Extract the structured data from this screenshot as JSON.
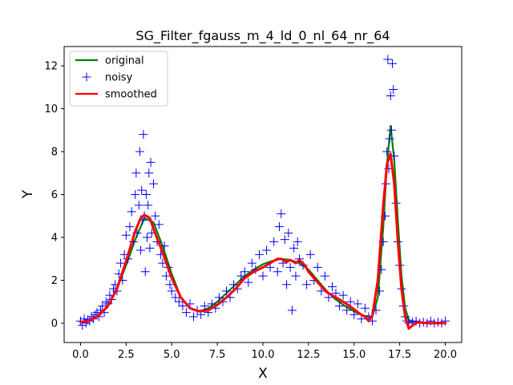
{
  "chart_data": {
    "type": "line",
    "title": "SG_Filter_fgauss_m_4_ld_0_nl_64_nr_64",
    "xlabel": "X",
    "ylabel": "Y",
    "xlim": [
      -0.9,
      20.9
    ],
    "ylim": [
      -0.9,
      12.9
    ],
    "xticks": [
      0.0,
      2.5,
      5.0,
      7.5,
      10.0,
      12.5,
      15.0,
      17.5,
      20.0
    ],
    "xtick_labels": [
      "0.0",
      "2.5",
      "5.0",
      "7.5",
      "10.0",
      "12.5",
      "15.0",
      "17.5",
      "20.0"
    ],
    "yticks": [
      0,
      2,
      4,
      6,
      8,
      10,
      12
    ],
    "ytick_labels": [
      "0",
      "2",
      "4",
      "6",
      "8",
      "10",
      "12"
    ],
    "grid": false,
    "legend_position": "top-left",
    "series": [
      {
        "name": "original",
        "style": "line",
        "color": "#008000",
        "x": [
          0,
          0.5,
          1,
          1.5,
          2,
          2.5,
          3,
          3.5,
          4,
          4.5,
          5,
          5.5,
          6,
          6.5,
          7,
          7.5,
          8,
          8.5,
          9,
          9.5,
          10,
          10.5,
          11,
          11.5,
          12,
          12.5,
          13,
          13.5,
          14,
          14.5,
          15,
          15.5,
          16,
          16.3,
          16.6,
          16.8,
          17,
          17.2,
          17.4,
          17.6,
          17.8,
          18,
          18.5,
          19,
          19.5,
          20
        ],
        "y": [
          0.05,
          0.12,
          0.35,
          0.8,
          1.6,
          2.7,
          3.9,
          4.9,
          4.7,
          3.6,
          2.3,
          1.2,
          0.7,
          0.55,
          0.7,
          1.0,
          1.4,
          1.8,
          2.2,
          2.5,
          2.75,
          2.9,
          3.0,
          2.95,
          2.8,
          2.5,
          2.0,
          1.5,
          1.1,
          0.8,
          0.55,
          0.35,
          0.3,
          1.2,
          4.5,
          7.4,
          9.2,
          7.6,
          4.8,
          2.2,
          0.7,
          0.15,
          0.02,
          0.0,
          0.0,
          0.0
        ]
      },
      {
        "name": "noisy",
        "style": "markers",
        "marker": "+",
        "color": "#0000ff",
        "x": [
          0.0,
          0.1,
          0.2,
          0.3,
          0.4,
          0.5,
          0.6,
          0.7,
          0.8,
          0.9,
          1.0,
          1.1,
          1.2,
          1.3,
          1.4,
          1.5,
          1.6,
          1.7,
          1.8,
          1.9,
          2.0,
          2.1,
          2.2,
          2.3,
          2.4,
          2.5,
          2.6,
          2.7,
          2.8,
          2.9,
          3.0,
          3.05,
          3.1,
          3.2,
          3.25,
          3.3,
          3.35,
          3.4,
          3.45,
          3.5,
          3.55,
          3.6,
          3.65,
          3.7,
          3.75,
          3.8,
          3.85,
          3.9,
          4.0,
          4.1,
          4.2,
          4.3,
          4.4,
          4.5,
          4.6,
          4.7,
          4.8,
          4.9,
          5.0,
          5.2,
          5.4,
          5.6,
          5.8,
          6.0,
          6.2,
          6.4,
          6.6,
          6.8,
          7.0,
          7.2,
          7.4,
          7.6,
          7.8,
          8.0,
          8.2,
          8.4,
          8.6,
          8.8,
          9.0,
          9.2,
          9.4,
          9.6,
          9.8,
          10.0,
          10.2,
          10.4,
          10.6,
          10.8,
          10.9,
          11.0,
          11.1,
          11.2,
          11.3,
          11.4,
          11.5,
          11.6,
          11.7,
          11.8,
          11.9,
          12.0,
          12.2,
          12.4,
          12.6,
          12.8,
          13.0,
          13.2,
          13.4,
          13.6,
          13.8,
          14.0,
          14.2,
          14.4,
          14.6,
          14.8,
          15.0,
          15.2,
          15.4,
          15.6,
          15.8,
          16.0,
          16.2,
          16.4,
          16.5,
          16.6,
          16.7,
          16.75,
          16.8,
          16.85,
          16.9,
          16.95,
          17.0,
          17.05,
          17.1,
          17.15,
          17.2,
          17.3,
          17.4,
          17.5,
          17.6,
          17.7,
          17.8,
          17.9,
          18.0,
          18.2,
          18.4,
          18.6,
          18.8,
          19.0,
          19.2,
          19.4,
          19.6,
          19.8,
          20.0
        ],
        "y": [
          0.1,
          -0.1,
          0.2,
          0.0,
          0.15,
          0.1,
          0.3,
          0.2,
          0.4,
          0.5,
          0.3,
          0.6,
          0.8,
          0.5,
          1.0,
          0.9,
          1.3,
          1.1,
          1.6,
          1.8,
          1.5,
          2.3,
          2.8,
          2.0,
          3.2,
          4.1,
          3.0,
          4.5,
          5.2,
          3.8,
          6.0,
          7.0,
          4.2,
          5.5,
          8.0,
          3.4,
          6.2,
          4.8,
          8.8,
          5.0,
          2.4,
          6.0,
          4.0,
          5.5,
          7.0,
          3.5,
          7.5,
          4.2,
          6.5,
          5.0,
          3.8,
          4.6,
          3.2,
          2.8,
          3.6,
          2.2,
          2.6,
          1.8,
          1.5,
          1.2,
          1.0,
          0.8,
          0.5,
          0.9,
          0.3,
          0.6,
          0.4,
          0.8,
          0.5,
          0.9,
          0.7,
          1.2,
          1.0,
          1.5,
          1.2,
          1.8,
          1.6,
          2.2,
          2.4,
          1.9,
          2.8,
          2.5,
          3.2,
          2.2,
          3.4,
          2.6,
          3.8,
          2.4,
          4.5,
          5.1,
          2.8,
          3.9,
          1.8,
          4.2,
          2.6,
          0.6,
          3.5,
          2.2,
          3.8,
          3.0,
          2.7,
          1.8,
          3.2,
          2.0,
          2.6,
          1.5,
          2.2,
          1.2,
          1.7,
          1.4,
          0.8,
          1.3,
          0.6,
          1.0,
          0.4,
          0.9,
          0.2,
          0.7,
          0.3,
          0.1,
          0.6,
          1.5,
          2.5,
          3.8,
          5.0,
          6.5,
          8.0,
          12.3,
          7.2,
          8.6,
          10.6,
          9.0,
          12.1,
          10.9,
          7.8,
          5.6,
          3.8,
          2.7,
          1.6,
          0.8,
          0.3,
          0.1,
          0.0,
          0.05,
          0.1,
          0.0,
          0.05,
          0.0,
          0.1,
          0.0,
          0.05,
          0.0,
          0.1
        ]
      },
      {
        "name": "smoothed",
        "style": "line",
        "color": "#ff0000",
        "x": [
          0.0,
          0.5,
          1.0,
          1.5,
          2.0,
          2.5,
          3.0,
          3.3,
          3.5,
          3.8,
          4.0,
          4.5,
          5.0,
          5.5,
          6.0,
          6.5,
          7.0,
          7.5,
          8.0,
          8.5,
          9.0,
          9.5,
          10.0,
          10.5,
          10.8,
          11.0,
          11.3,
          11.5,
          11.8,
          12.0,
          12.3,
          12.5,
          13.0,
          13.5,
          14.0,
          14.5,
          15.0,
          15.3,
          15.6,
          15.8,
          16.0,
          16.3,
          16.6,
          16.8,
          17.0,
          17.2,
          17.4,
          17.6,
          17.8,
          18.0,
          18.2,
          18.5,
          19.0,
          19.5,
          20.0
        ],
        "y": [
          0.05,
          0.12,
          0.35,
          0.8,
          1.6,
          2.9,
          4.3,
          4.9,
          5.05,
          4.9,
          4.4,
          3.3,
          2.1,
          1.2,
          0.7,
          0.55,
          0.6,
          0.85,
          1.2,
          1.6,
          2.1,
          2.4,
          2.6,
          2.85,
          3.0,
          3.0,
          2.85,
          2.95,
          2.8,
          2.95,
          2.7,
          2.4,
          1.9,
          1.45,
          1.2,
          0.95,
          0.65,
          0.45,
          0.3,
          0.1,
          0.35,
          2.0,
          5.5,
          7.4,
          7.9,
          6.5,
          3.8,
          1.6,
          0.3,
          -0.25,
          -0.1,
          0.05,
          0.0,
          0.0,
          0.0
        ]
      }
    ]
  }
}
